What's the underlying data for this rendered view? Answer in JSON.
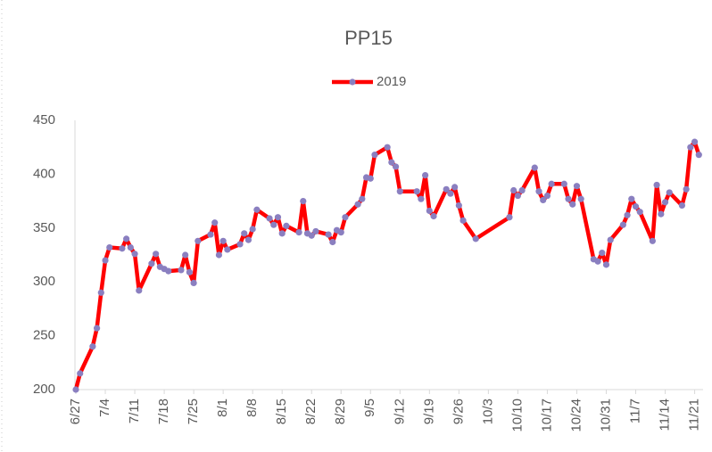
{
  "chart_data": {
    "type": "line",
    "title": "PP15",
    "x": [
      "6/27",
      "6/28",
      "7/1",
      "7/2",
      "7/3",
      "7/4",
      "7/5",
      "7/8",
      "7/9",
      "7/10",
      "7/11",
      "7/12",
      "7/15",
      "7/16",
      "7/17",
      "7/18",
      "7/19",
      "7/22",
      "7/23",
      "7/24",
      "7/25",
      "7/26",
      "7/29",
      "7/30",
      "7/31",
      "8/1",
      "8/2",
      "8/5",
      "8/6",
      "8/7",
      "8/8",
      "8/9",
      "8/12",
      "8/13",
      "8/14",
      "8/15",
      "8/16",
      "8/19",
      "8/20",
      "8/21",
      "8/22",
      "8/23",
      "8/26",
      "8/27",
      "8/28",
      "8/29",
      "8/30",
      "9/2",
      "9/3",
      "9/4",
      "9/5",
      "9/6",
      "9/9",
      "9/10",
      "9/11",
      "9/12",
      "9/16",
      "9/17",
      "9/18",
      "9/19",
      "9/20",
      "9/23",
      "9/24",
      "9/25",
      "9/26",
      "9/27",
      "9/30",
      "10/8",
      "10/9",
      "10/10",
      "10/11",
      "10/14",
      "10/15",
      "10/16",
      "10/17",
      "10/18",
      "10/21",
      "10/22",
      "10/23",
      "10/24",
      "10/25",
      "10/28",
      "10/29",
      "10/30",
      "10/31",
      "11/1",
      "11/4",
      "11/5",
      "11/6",
      "11/7",
      "11/8",
      "11/11",
      "11/12",
      "11/13",
      "11/14",
      "11/15",
      "11/18",
      "11/19",
      "11/20",
      "11/21",
      "11/22"
    ],
    "series": [
      {
        "name": "2019",
        "color": "#ff0000",
        "marker_color": "#8a7fc0",
        "values": [
          200,
          215,
          240,
          257,
          290,
          320,
          332,
          331,
          340,
          332,
          326,
          292,
          317,
          326,
          314,
          312,
          310,
          311,
          325,
          309,
          299,
          338,
          344,
          355,
          325,
          338,
          330,
          335,
          345,
          339,
          349,
          367,
          359,
          353,
          360,
          345,
          352,
          346,
          375,
          345,
          343,
          347,
          344,
          337,
          348,
          346,
          360,
          372,
          377,
          397,
          396,
          418,
          425,
          411,
          407,
          384,
          384,
          377,
          399,
          366,
          361,
          386,
          382,
          388,
          371,
          357,
          340,
          360,
          385,
          380,
          385,
          406,
          384,
          376,
          380,
          391,
          391,
          377,
          372,
          389,
          377,
          321,
          319,
          327,
          316,
          339,
          353,
          362,
          377,
          370,
          365,
          338,
          390,
          363,
          374,
          383,
          371,
          386,
          425,
          430,
          418
        ]
      }
    ],
    "xlim": [
      "6/27",
      "11/23"
    ],
    "xticks": [
      "6/27",
      "7/4",
      "7/11",
      "7/18",
      "7/25",
      "8/1",
      "8/8",
      "8/15",
      "8/22",
      "8/29",
      "9/5",
      "9/12",
      "9/19",
      "9/26",
      "10/3",
      "10/10",
      "10/17",
      "10/24",
      "10/31",
      "11/7",
      "11/14",
      "11/21"
    ],
    "ylim": [
      200,
      450
    ],
    "yticks": [
      200,
      250,
      300,
      350,
      400,
      450
    ],
    "grid": false,
    "legend": "top"
  }
}
